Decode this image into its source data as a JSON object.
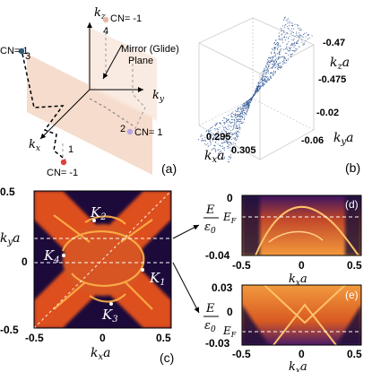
{
  "panel_labels": {
    "a": "(a)",
    "b": "(b)",
    "c": "(c)",
    "d": "(d)",
    "e": "(e)"
  },
  "panel_a": {
    "axes": {
      "kx": "k",
      "kx_sub": "x",
      "ky": "k",
      "ky_sub": "y",
      "kz": "k",
      "kz_sub": "z"
    },
    "cn_labels": {
      "top": "CN= -1",
      "left": "CN= 1",
      "right": "CN= 1",
      "bottom": "CN= -1"
    },
    "point_numbers": [
      "1",
      "2",
      "3",
      "4"
    ],
    "mirror_label_1": "Mirror (Glide)",
    "mirror_label_2": "Plane",
    "colors": {
      "plane": "#f3d6c4",
      "point_top": "#e8b8a8",
      "point_left": "#2c5a78",
      "point_right": "#b7a6e0",
      "point_bottom": "#e0403a"
    }
  },
  "panel_b": {
    "ticks_kz": [
      "-0.47",
      "-0.475"
    ],
    "ticks_ky": [
      "-0.02",
      "-0.06"
    ],
    "ticks_kx": [
      "0.295",
      "0.305"
    ],
    "label_kz": "k",
    "label_kz_sub": "z",
    "label_ky": "k",
    "label_ky_sub": "y",
    "label_kx": "k",
    "label_kx_sub": "x",
    "unit_a": "a",
    "dot_color": "#3a5f9a"
  },
  "panel_c": {
    "xticks": [
      "-0.5",
      "0",
      "0.5"
    ],
    "yticks": [
      "0.5",
      "0",
      "-0.5"
    ],
    "xlabel": "k",
    "xlabel_sub": "x",
    "ylabel": "k",
    "ylabel_sub": "y",
    "unit_a": "a",
    "points": [
      {
        "name": "K",
        "sub": "1"
      },
      {
        "name": "K",
        "sub": "2"
      },
      {
        "name": "K",
        "sub": "3"
      },
      {
        "name": "K",
        "sub": "4"
      }
    ]
  },
  "panel_d": {
    "yticks": [
      "0",
      "-0.04"
    ],
    "xticks": [
      "-0.5",
      "0",
      "0.5"
    ],
    "ylabel_num": "E",
    "ylabel_den": "ε",
    "ylabel_den_sub": "0",
    "ef": "E",
    "ef_sub": "F"
  },
  "panel_e": {
    "yticks": [
      "0.03",
      "0",
      "-0.03"
    ],
    "xticks": [
      "-0.5",
      "0",
      "0.5"
    ],
    "ylabel_num": "E",
    "ylabel_den": "ε",
    "ylabel_den_sub": "0",
    "ef": "E",
    "ef_sub": "F",
    "xlabel": "k",
    "xlabel_sub": "x",
    "unit_a": "a"
  }
}
